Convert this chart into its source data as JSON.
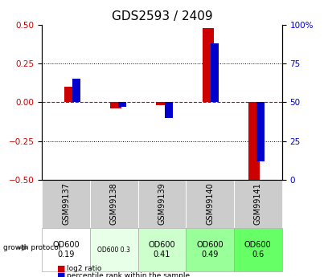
{
  "title": "GDS2593 / 2409",
  "samples": [
    "GSM99137",
    "GSM99138",
    "GSM99139",
    "GSM99140",
    "GSM99141"
  ],
  "log2_ratio": [
    0.1,
    -0.04,
    -0.02,
    0.48,
    -0.52
  ],
  "percentile_rank": [
    65,
    47,
    40,
    88,
    12
  ],
  "ylim_left": [
    -0.5,
    0.5
  ],
  "ylim_right": [
    0,
    100
  ],
  "yticks_left": [
    -0.5,
    -0.25,
    0.0,
    0.25,
    0.5
  ],
  "yticks_right": [
    0,
    25,
    50,
    75,
    100
  ],
  "bar_width": 0.35,
  "red_color": "#cc0000",
  "blue_color": "#0000cc",
  "dashed_red": "#cc0000",
  "growth_protocol_labels": [
    "OD600\n0.19",
    "OD600 0.3",
    "OD600\n0.41",
    "OD600\n0.49",
    "OD600\n0.6"
  ],
  "growth_protocol_bg": [
    "#ffffff",
    "#e8ffe8",
    "#ccffcc",
    "#99ff99",
    "#66ff66"
  ],
  "sample_bg": "#cccccc",
  "dotted_lines": [
    -0.25,
    0.25
  ],
  "title_fontsize": 11,
  "tick_fontsize": 7.5,
  "label_fontsize": 7,
  "sample_label_fontsize": 7,
  "protocol_fontsize": 7
}
